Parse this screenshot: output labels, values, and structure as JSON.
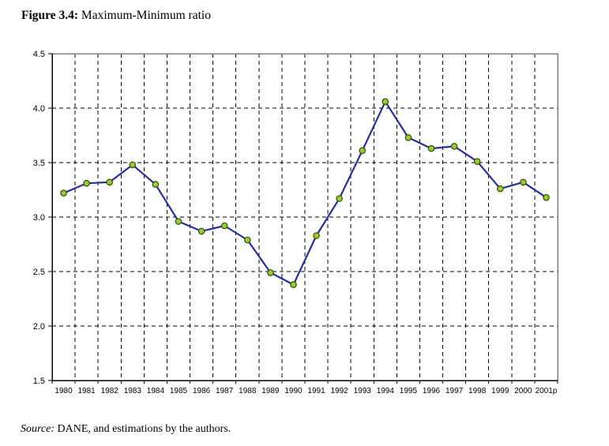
{
  "title": {
    "prefix": "Figure 3.4:",
    "text": " Maximum-Minimum ratio"
  },
  "source": {
    "prefix": "Source:",
    "text": " DANE, and estimations by the authors."
  },
  "chart_data": {
    "type": "line",
    "title": "Figure 3.4: Maximum-Minimum ratio",
    "xlabel": "",
    "ylabel": "",
    "categories": [
      "1980",
      "1981",
      "1982",
      "1983",
      "1984",
      "1985",
      "1986",
      "1987",
      "1988",
      "1989",
      "1990",
      "1991",
      "1992",
      "1993",
      "1994",
      "1995",
      "1996",
      "1997",
      "1998",
      "1999",
      "2000",
      "2001p"
    ],
    "series": [
      {
        "name": "Maximum-Minimum ratio",
        "values": [
          3.22,
          3.31,
          3.32,
          3.48,
          3.3,
          2.96,
          2.87,
          2.92,
          2.79,
          2.49,
          2.38,
          2.83,
          3.17,
          3.61,
          4.06,
          3.73,
          3.63,
          3.65,
          3.51,
          3.26,
          3.32,
          3.18
        ]
      }
    ],
    "ylim": [
      1.5,
      4.5
    ],
    "ytick_step": 0.5,
    "ytick_labels": [
      "1.5",
      "2.0",
      "2.5",
      "3.0",
      "3.5",
      "4.0",
      "4.5"
    ],
    "grid": "dashed-black-horizontal-and-vertical",
    "legend": "none",
    "colors": {
      "line": "#252F9E",
      "marker_fill": "#9BCC2E",
      "marker_stroke": "#2D4F0E",
      "gridline": "#000000",
      "axis": "#000000",
      "plot_border": "#808080",
      "text": "#000000",
      "background": "#FFFFFF"
    }
  }
}
